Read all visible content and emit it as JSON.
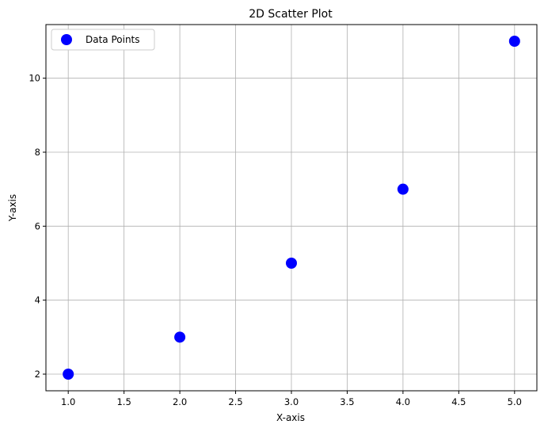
{
  "chart_data": {
    "type": "scatter",
    "title": "2D Scatter Plot",
    "xlabel": "X-axis",
    "ylabel": "Y-axis",
    "xlim": [
      0.8,
      5.2
    ],
    "ylim": [
      1.55,
      11.45
    ],
    "xticks": [
      1.0,
      1.5,
      2.0,
      2.5,
      3.0,
      3.5,
      4.0,
      4.5,
      5.0
    ],
    "xtick_labels": [
      "1.0",
      "1.5",
      "2.0",
      "2.5",
      "3.0",
      "3.5",
      "4.0",
      "4.5",
      "5.0"
    ],
    "yticks": [
      2,
      4,
      6,
      8,
      10
    ],
    "ytick_labels": [
      "2",
      "4",
      "6",
      "8",
      "10"
    ],
    "grid": true,
    "legend": {
      "position": "top-left",
      "entries": [
        "Data Points"
      ]
    },
    "series": [
      {
        "name": "Data Points",
        "color": "#0000ff",
        "x": [
          1,
          2,
          3,
          4,
          5
        ],
        "y": [
          2,
          3,
          5,
          7,
          11
        ]
      }
    ]
  }
}
